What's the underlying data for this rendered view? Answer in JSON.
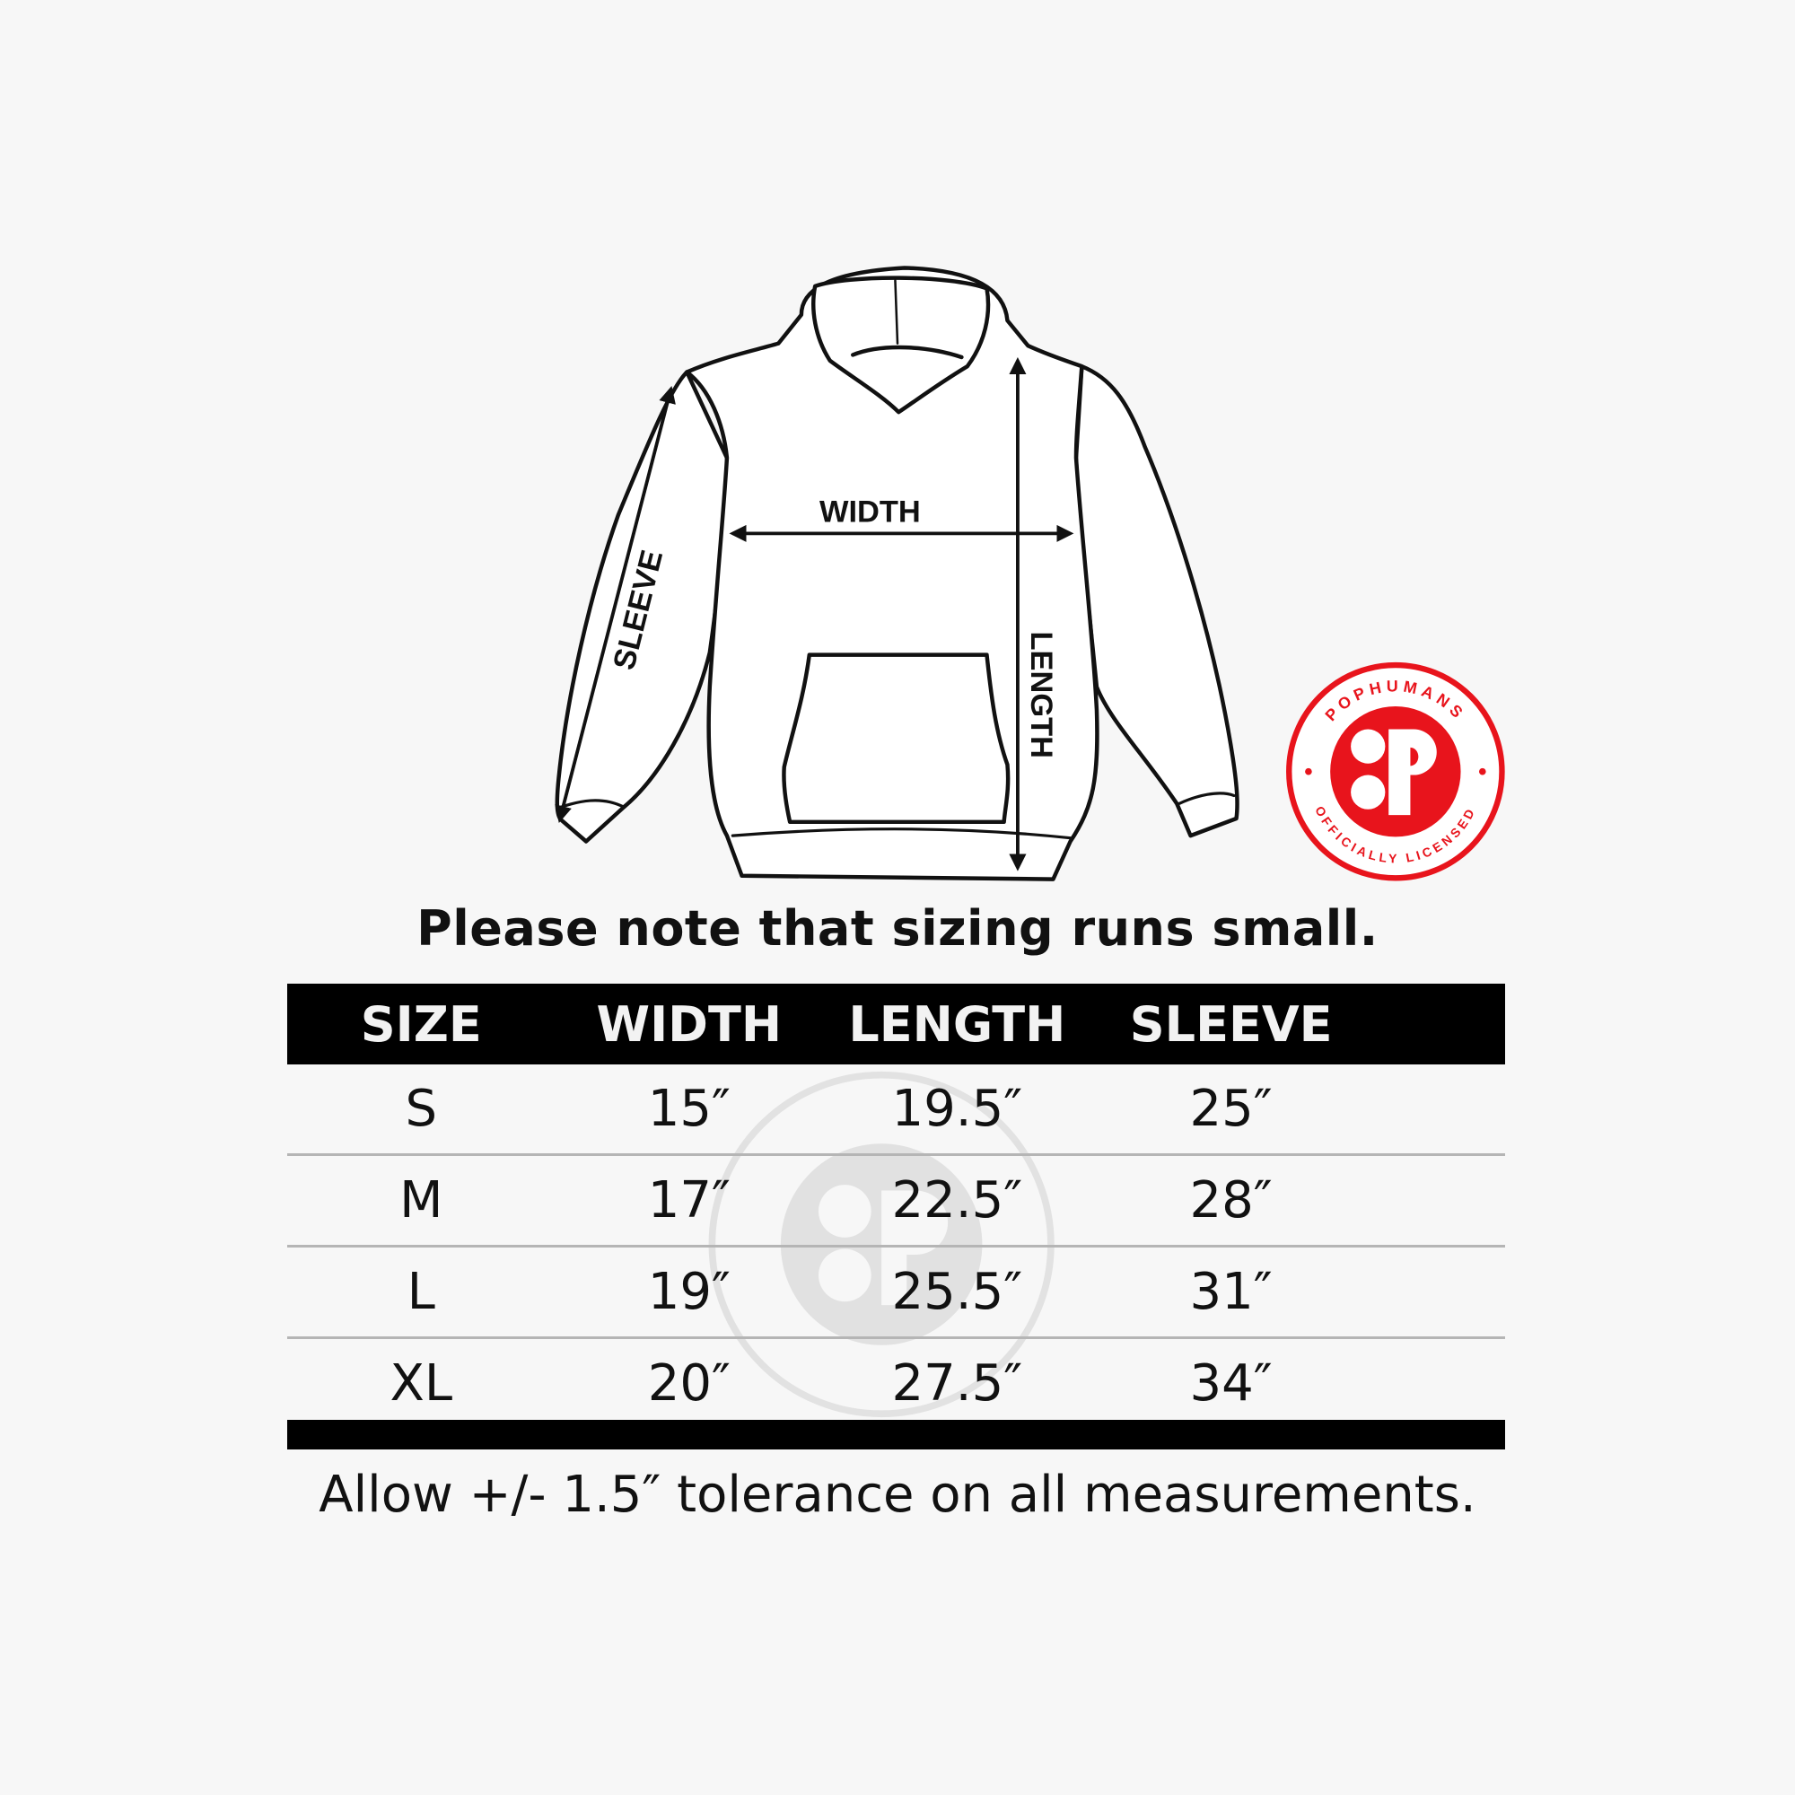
{
  "diagram": {
    "labels": {
      "width": "WIDTH",
      "length": "LENGTH",
      "sleeve": "SLEEVE"
    }
  },
  "logo": {
    "brand": "POPHUMANS",
    "tagline": "OFFICIALLY LICENSED",
    "mark": "P",
    "color": "#e8141c"
  },
  "note": "Please note that sizing runs small.",
  "table": {
    "headers": [
      "SIZE",
      "WIDTH",
      "LENGTH",
      "SLEEVE"
    ],
    "rows": [
      [
        "S",
        "15″",
        "19.5″",
        "25″"
      ],
      [
        "M",
        "17″",
        "22.5″",
        "28″"
      ],
      [
        "L",
        "19″",
        "25.5″",
        "31″"
      ],
      [
        "XL",
        "20″",
        "27.5″",
        "34″"
      ]
    ]
  },
  "tolerance": "Allow +/- 1.5″ tolerance on all measurements."
}
